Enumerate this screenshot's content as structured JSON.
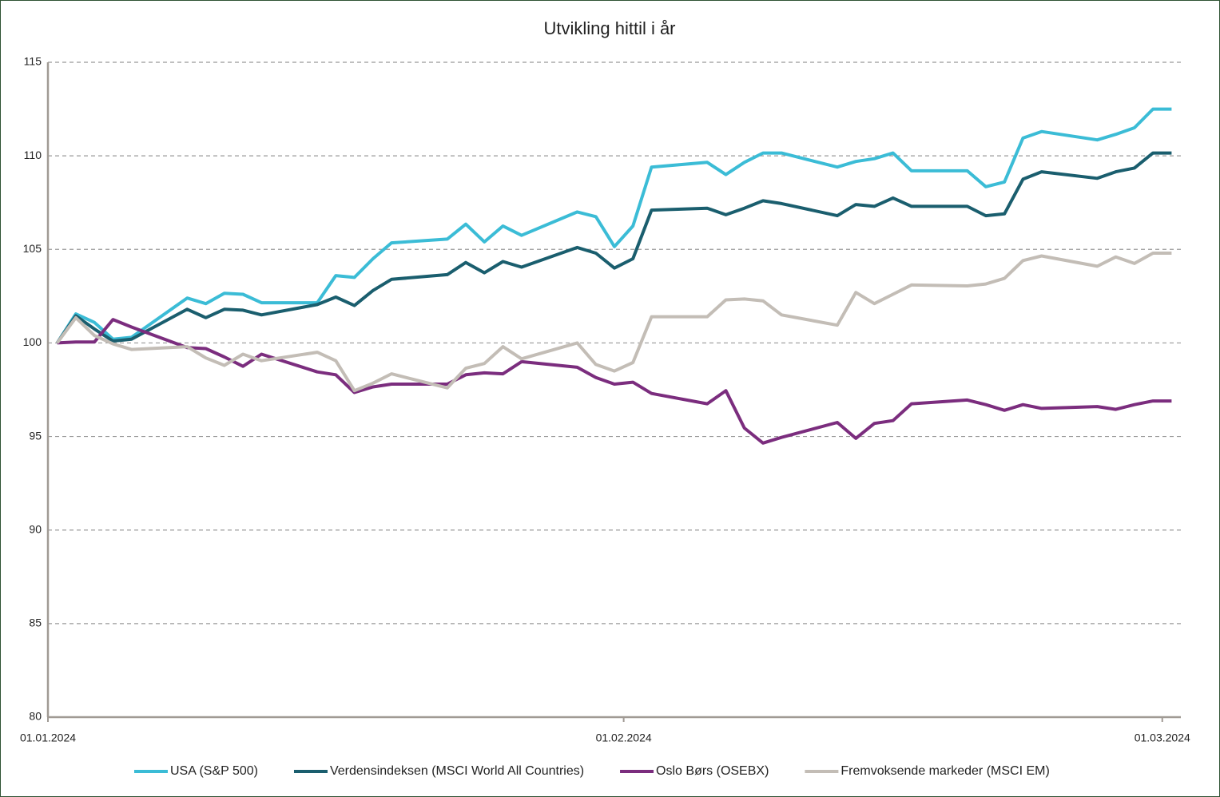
{
  "chart_data": {
    "type": "line",
    "title": "Utvikling hittil i år",
    "x": [
      "01.01.2024",
      "02.01.2024",
      "03.01.2024",
      "04.01.2024",
      "05.01.2024",
      "08.01.2024",
      "09.01.2024",
      "10.01.2024",
      "11.01.2024",
      "12.01.2024",
      "15.01.2024",
      "16.01.2024",
      "17.01.2024",
      "18.01.2024",
      "19.01.2024",
      "22.01.2024",
      "23.01.2024",
      "24.01.2024",
      "25.01.2024",
      "26.01.2024",
      "29.01.2024",
      "30.01.2024",
      "31.01.2024",
      "01.02.2024",
      "02.02.2024",
      "05.02.2024",
      "06.02.2024",
      "07.02.2024",
      "08.02.2024",
      "09.02.2024",
      "12.02.2024",
      "13.02.2024",
      "14.02.2024",
      "15.02.2024",
      "16.02.2024",
      "19.02.2024",
      "20.02.2024",
      "21.02.2024",
      "22.02.2024",
      "23.02.2024",
      "26.02.2024",
      "27.02.2024",
      "28.02.2024",
      "29.02.2024",
      "01.03.2024"
    ],
    "xlim": [
      "01.01.2024",
      "02.03.2024"
    ],
    "xticks": [
      "01.01.2024",
      "01.02.2024",
      "01.03.2024"
    ],
    "ylim": [
      80,
      115
    ],
    "yticks": [
      80,
      85,
      90,
      95,
      100,
      105,
      110,
      115
    ],
    "grid": true,
    "legend": "bottom",
    "series": [
      {
        "name": "USA (S&P 500)",
        "color": "#3bbcd6",
        "values": [
          100,
          101.55,
          101.1,
          100.2,
          100.3,
          102.4,
          102.1,
          102.65,
          102.6,
          102.15,
          102.15,
          103.6,
          103.5,
          104.5,
          105.35,
          105.55,
          106.35,
          105.4,
          106.25,
          105.75,
          107.0,
          106.75,
          105.15,
          106.25,
          109.4,
          109.65,
          109.0,
          109.65,
          110.15,
          110.15,
          109.4,
          109.7,
          109.85,
          110.15,
          109.2,
          109.2,
          108.35,
          108.6,
          110.95,
          111.3,
          110.85,
          111.15,
          111.5,
          112.5,
          112.5
        ]
      },
      {
        "name": "Verdensindeksen (MSCI World All Countries)",
        "color": "#1a5e6e",
        "values": [
          100,
          101.45,
          100.75,
          100.1,
          100.2,
          101.8,
          101.35,
          101.8,
          101.75,
          101.5,
          102.05,
          102.45,
          102.0,
          102.8,
          103.4,
          103.65,
          104.3,
          103.75,
          104.35,
          104.05,
          105.1,
          104.8,
          104.0,
          104.5,
          107.1,
          107.2,
          106.85,
          107.2,
          107.6,
          107.45,
          106.8,
          107.4,
          107.3,
          107.75,
          107.3,
          107.3,
          106.8,
          106.9,
          108.75,
          109.15,
          108.8,
          109.15,
          109.35,
          110.15,
          110.15
        ]
      },
      {
        "name": "Oslo Børs (OSEBX)",
        "color": "#7b2d7e",
        "values": [
          100,
          100.05,
          100.05,
          101.25,
          100.85,
          99.75,
          99.7,
          99.25,
          98.75,
          99.4,
          98.45,
          98.3,
          97.35,
          97.65,
          97.8,
          97.8,
          98.3,
          98.4,
          98.35,
          99.0,
          98.7,
          98.15,
          97.8,
          97.9,
          97.3,
          96.75,
          97.45,
          95.45,
          94.65,
          94.95,
          95.75,
          94.9,
          95.7,
          95.85,
          96.75,
          96.95,
          96.7,
          96.4,
          96.7,
          96.5,
          96.6,
          96.45,
          96.7,
          96.9,
          96.9
        ]
      },
      {
        "name": "Fremvoksende markeder (MSCI EM)",
        "color": "#c3bdb6",
        "values": [
          100,
          101.35,
          100.4,
          99.95,
          99.65,
          99.8,
          99.2,
          98.8,
          99.4,
          99.05,
          99.5,
          99.05,
          97.45,
          97.85,
          98.35,
          97.6,
          98.65,
          98.9,
          99.8,
          99.15,
          100.0,
          98.85,
          98.5,
          98.95,
          101.4,
          101.4,
          102.3,
          102.35,
          102.25,
          101.5,
          100.95,
          102.7,
          102.1,
          102.6,
          103.1,
          103.05,
          103.15,
          103.45,
          104.4,
          104.65,
          104.1,
          104.6,
          104.25,
          104.8,
          104.8
        ]
      }
    ]
  }
}
